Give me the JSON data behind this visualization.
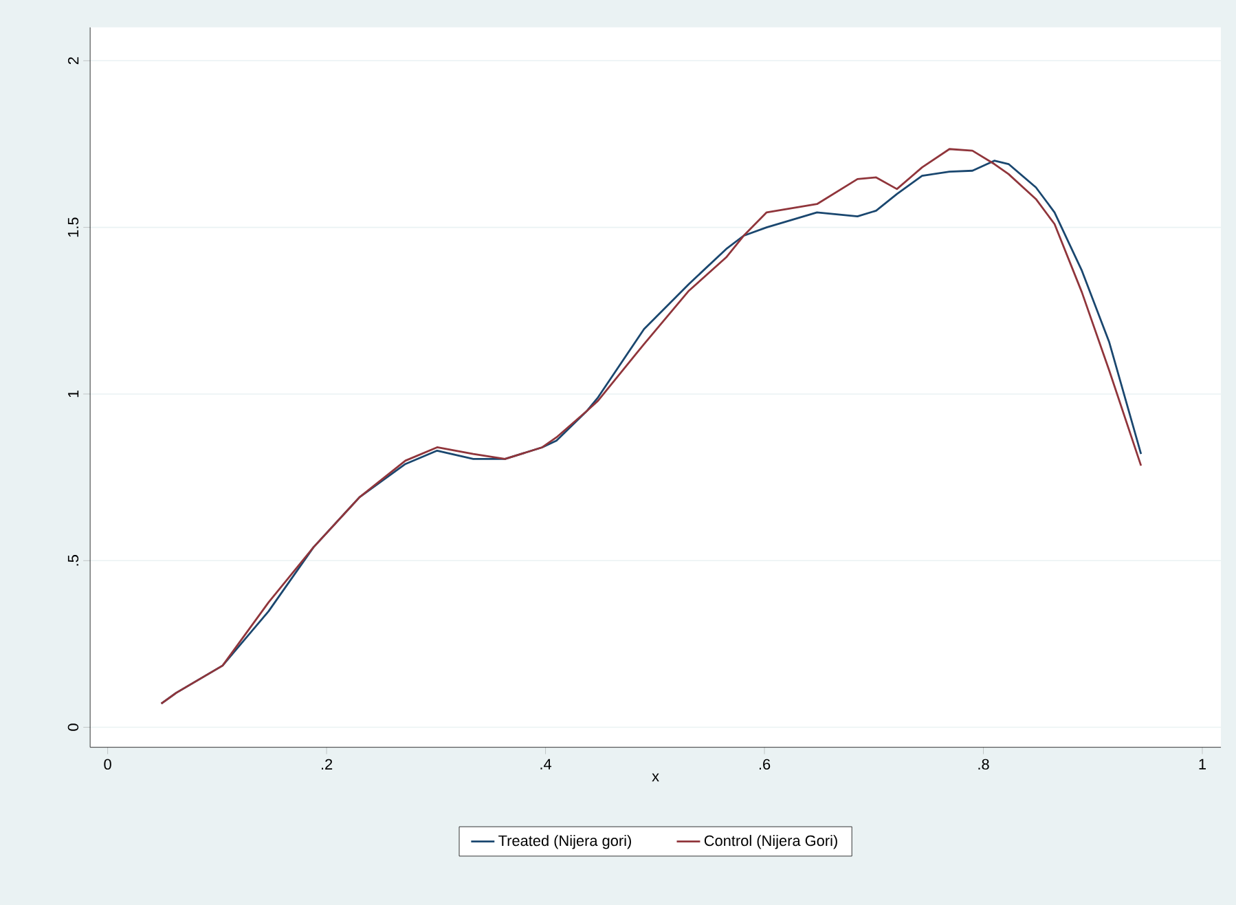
{
  "chart_data": {
    "type": "line",
    "xlabel": "x",
    "xlim": [
      -0.016,
      1.017
    ],
    "ylim": [
      -0.06,
      2.1
    ],
    "xticks": [
      0,
      {
        "value": 0.2,
        "label": ".2"
      },
      {
        "value": 0.4,
        "label": ".4"
      },
      {
        "value": 0.6,
        "label": ".6"
      },
      {
        "value": 0.8,
        "label": ".8"
      },
      1
    ],
    "yticks": [
      0,
      {
        "value": 0.5,
        "label": ".5"
      },
      1,
      1.5,
      2
    ],
    "grid": "y",
    "legend": "bottom",
    "series": [
      {
        "name": "Treated (Nijera gori)",
        "color": "#1a476f",
        "x": [
          0.049,
          0.0625,
          0.105,
          0.147,
          0.188,
          0.23,
          0.272,
          0.301,
          0.334,
          0.363,
          0.397,
          0.41,
          0.438,
          0.448,
          0.49,
          0.531,
          0.565,
          0.581,
          0.602,
          0.648,
          0.685,
          0.702,
          0.721,
          0.744,
          0.769,
          0.79,
          0.81,
          0.823,
          0.848,
          0.865,
          0.89,
          0.915,
          0.944
        ],
        "values": [
          0.071,
          0.103,
          0.185,
          0.348,
          0.54,
          0.69,
          0.79,
          0.83,
          0.805,
          0.805,
          0.84,
          0.86,
          0.95,
          0.99,
          1.195,
          1.33,
          1.435,
          1.475,
          1.5,
          1.545,
          1.533,
          1.55,
          1.6,
          1.655,
          1.667,
          1.67,
          1.7,
          1.69,
          1.62,
          1.545,
          1.37,
          1.155,
          0.82
        ]
      },
      {
        "name": "Control (Nijera Gori)",
        "color": "#90353b",
        "x": [
          0.049,
          0.0625,
          0.105,
          0.147,
          0.188,
          0.23,
          0.272,
          0.301,
          0.334,
          0.363,
          0.397,
          0.41,
          0.438,
          0.448,
          0.49,
          0.531,
          0.565,
          0.581,
          0.602,
          0.648,
          0.685,
          0.702,
          0.721,
          0.744,
          0.769,
          0.79,
          0.81,
          0.823,
          0.848,
          0.865,
          0.89,
          0.915,
          0.944
        ],
        "values": [
          0.071,
          0.103,
          0.185,
          0.375,
          0.54,
          0.69,
          0.8,
          0.84,
          0.82,
          0.805,
          0.84,
          0.87,
          0.95,
          0.98,
          1.15,
          1.31,
          1.41,
          1.475,
          1.545,
          1.57,
          1.645,
          1.65,
          1.615,
          1.68,
          1.735,
          1.73,
          1.69,
          1.66,
          1.585,
          1.51,
          1.305,
          1.07,
          0.785
        ]
      }
    ]
  }
}
